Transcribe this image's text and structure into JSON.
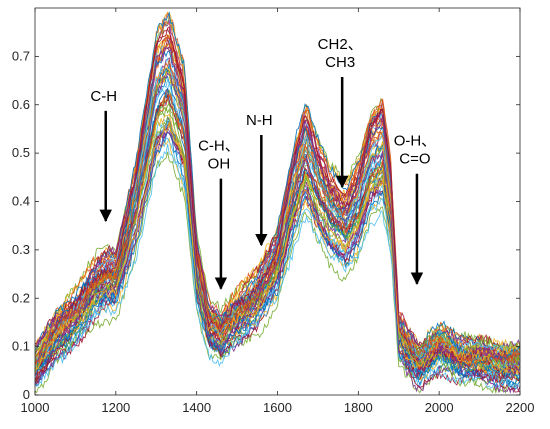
{
  "chart_data": {
    "type": "line",
    "title": "",
    "xlabel": "",
    "ylabel": "",
    "xlim": [
      1000,
      2200
    ],
    "ylim": [
      0,
      0.8
    ],
    "x_ticks": [
      "1000",
      "1200",
      "1400",
      "1600",
      "1800",
      "2000",
      "2200"
    ],
    "y_ticks": [
      "0",
      "0.1",
      "0.2",
      "0.3",
      "0.4",
      "0.5",
      "0.6",
      "0.7"
    ],
    "grid": false,
    "legend": "none",
    "series_count": 60,
    "mean_spectrum": {
      "x": [
        1000,
        1050,
        1100,
        1150,
        1175,
        1200,
        1250,
        1300,
        1330,
        1370,
        1400,
        1430,
        1460,
        1500,
        1550,
        1600,
        1640,
        1670,
        1700,
        1730,
        1770,
        1800,
        1830,
        1860,
        1880,
        1900,
        1950,
        2000,
        2050,
        2100,
        2150,
        2200
      ],
      "y": [
        0.05,
        0.12,
        0.16,
        0.22,
        0.24,
        0.24,
        0.4,
        0.62,
        0.66,
        0.56,
        0.26,
        0.14,
        0.12,
        0.16,
        0.2,
        0.28,
        0.42,
        0.5,
        0.43,
        0.38,
        0.35,
        0.4,
        0.48,
        0.51,
        0.4,
        0.12,
        0.06,
        0.1,
        0.07,
        0.07,
        0.06,
        0.06
      ]
    },
    "annotations": [
      {
        "lines": [
          "C-H"
        ],
        "x": 1175,
        "arrow_tip_y": 0.36
      },
      {
        "lines": [
          "C-H、",
          "OH"
        ],
        "x": 1460,
        "arrow_tip_y": 0.22
      },
      {
        "lines": [
          "N-H"
        ],
        "x": 1560,
        "arrow_tip_y": 0.31
      },
      {
        "lines": [
          "CH2、",
          "CH3"
        ],
        "x": 1760,
        "arrow_tip_y": 0.43
      },
      {
        "lines": [
          "O-H、",
          "C=O"
        ],
        "x": 1945,
        "arrow_tip_y": 0.23
      }
    ],
    "colors": [
      "#0072bd",
      "#d95319",
      "#edb120",
      "#7e2f8e",
      "#77ac30",
      "#4dbeee",
      "#a2142f"
    ]
  }
}
